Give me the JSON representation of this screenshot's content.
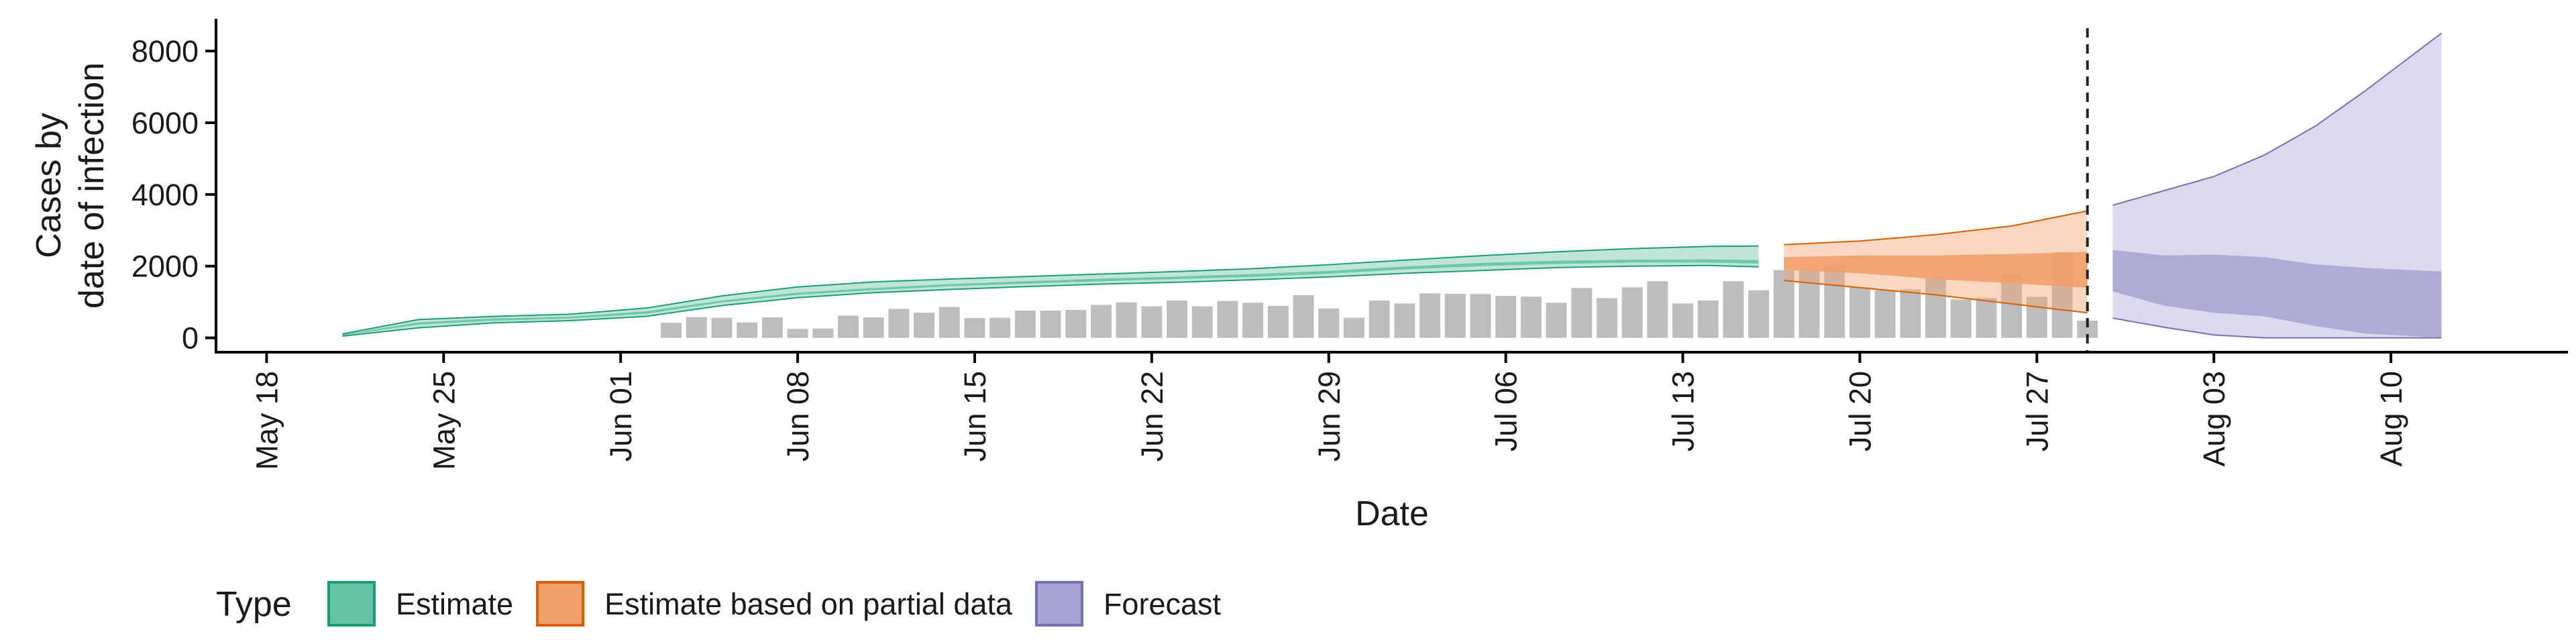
{
  "chart_data": {
    "type": "area",
    "xlabel": "Date",
    "ylabel_lines": [
      "Cases by",
      "date of infection"
    ],
    "x_ticks": [
      "May 18",
      "May 25",
      "Jun 01",
      "Jun 08",
      "Jun 15",
      "Jun 22",
      "Jun 29",
      "Jul 06",
      "Jul 13",
      "Jul 20",
      "Jul 27",
      "Aug 03",
      "Aug 10"
    ],
    "x_range": [
      "2020-05-16",
      "2020-08-17"
    ],
    "y_ticks": [
      0,
      2000,
      4000,
      6000,
      8000
    ],
    "ylim": [
      -400,
      8900
    ],
    "grid": false,
    "legend": {
      "position": "bottom-left",
      "title": "Type",
      "entries": [
        {
          "label": "Estimate",
          "fill": "#66c2a5",
          "stroke": "#1b9e77"
        },
        {
          "label": "Estimate based on partial data",
          "fill": "#f0a06a",
          "stroke": "#d95f02"
        },
        {
          "label": "Forecast",
          "fill": "#a9a5d3",
          "stroke": "#7570b3"
        }
      ]
    },
    "forecast_date": "2020-07-29",
    "observed_cases": {
      "dates": [
        "2020-06-03",
        "2020-06-04",
        "2020-06-05",
        "2020-06-06",
        "2020-06-07",
        "2020-06-08",
        "2020-06-09",
        "2020-06-10",
        "2020-06-11",
        "2020-06-12",
        "2020-06-13",
        "2020-06-14",
        "2020-06-15",
        "2020-06-16",
        "2020-06-17",
        "2020-06-18",
        "2020-06-19",
        "2020-06-20",
        "2020-06-21",
        "2020-06-22",
        "2020-06-23",
        "2020-06-24",
        "2020-06-25",
        "2020-06-26",
        "2020-06-27",
        "2020-06-28",
        "2020-06-29",
        "2020-06-30",
        "2020-07-01",
        "2020-07-02",
        "2020-07-03",
        "2020-07-04",
        "2020-07-05",
        "2020-07-06",
        "2020-07-07",
        "2020-07-08",
        "2020-07-09",
        "2020-07-10",
        "2020-07-11",
        "2020-07-12",
        "2020-07-13",
        "2020-07-14",
        "2020-07-15",
        "2020-07-16",
        "2020-07-17",
        "2020-07-18",
        "2020-07-19",
        "2020-07-20",
        "2020-07-21",
        "2020-07-22",
        "2020-07-23",
        "2020-07-24",
        "2020-07-25",
        "2020-07-26",
        "2020-07-27",
        "2020-07-28",
        "2020-07-29"
      ],
      "values": [
        420,
        580,
        560,
        430,
        570,
        250,
        260,
        620,
        570,
        810,
        700,
        860,
        550,
        560,
        760,
        760,
        780,
        920,
        990,
        880,
        1040,
        880,
        1030,
        980,
        890,
        1190,
        820,
        560,
        1040,
        960,
        1240,
        1230,
        1220,
        1170,
        1150,
        980,
        1390,
        1110,
        1410,
        1580,
        960,
        1040,
        1580,
        1330,
        1890,
        1880,
        1990,
        1410,
        1330,
        1350,
        1670,
        1070,
        1110,
        1790,
        1140,
        2390,
        480
      ]
    },
    "series": [
      {
        "name": "Estimate",
        "dates": [
          "2020-05-21",
          "2020-05-24",
          "2020-05-27",
          "2020-05-30",
          "2020-06-02",
          "2020-06-05",
          "2020-06-08",
          "2020-06-11",
          "2020-06-14",
          "2020-06-17",
          "2020-06-20",
          "2020-06-23",
          "2020-06-26",
          "2020-06-29",
          "2020-07-02",
          "2020-07-05",
          "2020-07-08",
          "2020-07-11",
          "2020-07-14",
          "2020-07-16"
        ],
        "lower90": [
          50,
          280,
          420,
          480,
          600,
          900,
          1120,
          1260,
          1350,
          1430,
          1500,
          1550,
          1620,
          1700,
          1800,
          1880,
          1960,
          2000,
          2020,
          1980
        ],
        "lower50": [
          70,
          370,
          480,
          540,
          670,
          990,
          1200,
          1330,
          1440,
          1510,
          1580,
          1640,
          1700,
          1790,
          1910,
          2000,
          2060,
          2100,
          2100,
          2070
        ],
        "upper50": [
          90,
          430,
          540,
          590,
          740,
          1040,
          1260,
          1390,
          1500,
          1580,
          1650,
          1710,
          1780,
          1870,
          1990,
          2090,
          2150,
          2180,
          2190,
          2170
        ],
        "upper90": [
          110,
          510,
          600,
          660,
          830,
          1170,
          1420,
          1560,
          1640,
          1710,
          1780,
          1850,
          1930,
          2040,
          2170,
          2290,
          2400,
          2490,
          2550,
          2560
        ]
      },
      {
        "name": "Estimate based on partial data",
        "dates": [
          "2020-07-17",
          "2020-07-20",
          "2020-07-23",
          "2020-07-26",
          "2020-07-29"
        ],
        "lower90": [
          1600,
          1400,
          1200,
          950,
          700
        ],
        "lower50": [
          1900,
          1800,
          1640,
          1520,
          1400
        ],
        "upper50": [
          2250,
          2300,
          2300,
          2340,
          2400
        ],
        "upper90": [
          2600,
          2700,
          2880,
          3120,
          3540
        ]
      },
      {
        "name": "Forecast",
        "dates": [
          "2020-07-30",
          "2020-08-01",
          "2020-08-03",
          "2020-08-05",
          "2020-08-07",
          "2020-08-09",
          "2020-08-12"
        ],
        "lower90": [
          550,
          300,
          80,
          0,
          0,
          0,
          0
        ],
        "lower50": [
          1300,
          900,
          700,
          600,
          330,
          120,
          0
        ],
        "upper50": [
          2450,
          2300,
          2320,
          2250,
          2050,
          1950,
          1850
        ],
        "upper90": [
          3700,
          4100,
          4500,
          5100,
          5900,
          6900,
          8500
        ]
      }
    ]
  }
}
